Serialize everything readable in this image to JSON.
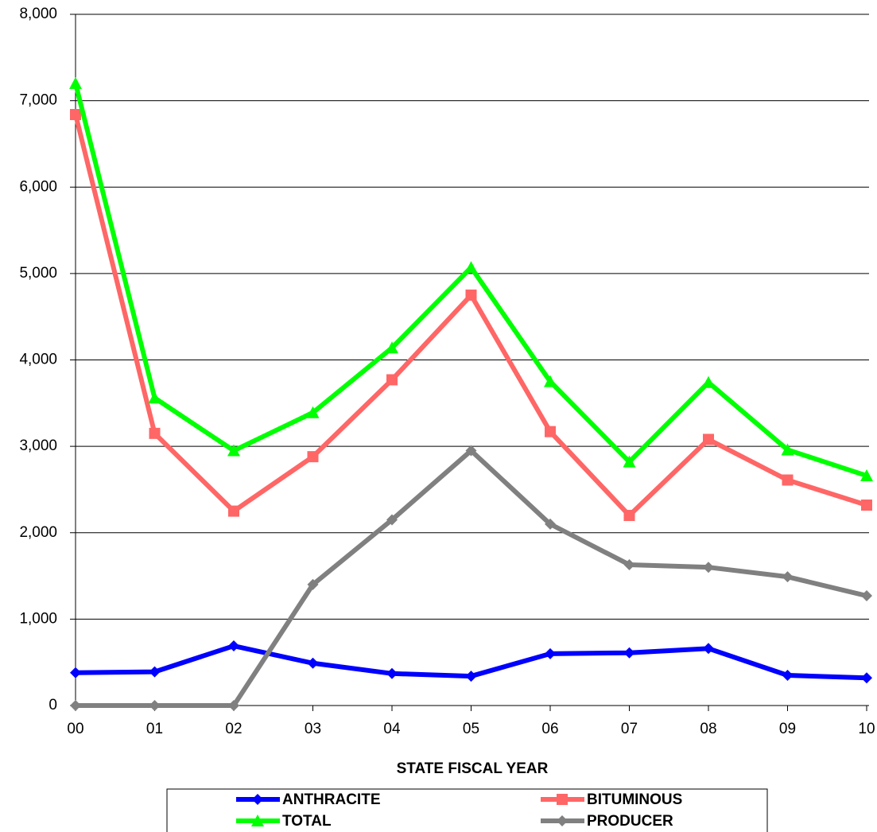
{
  "chart_data": {
    "type": "line",
    "x_label": "STATE FISCAL YEAR",
    "categories": [
      "00",
      "01",
      "02",
      "03",
      "04",
      "05",
      "06",
      "07",
      "08",
      "09",
      "10"
    ],
    "series": [
      {
        "name": "ANTHRACITE",
        "color": "#0000ff",
        "marker": "diamond",
        "values": [
          380,
          390,
          690,
          490,
          370,
          340,
          600,
          610,
          660,
          350,
          320
        ]
      },
      {
        "name": "BITUMINOUS",
        "color": "#ff6666",
        "marker": "square",
        "values": [
          6840,
          3150,
          2250,
          2880,
          3770,
          4750,
          3170,
          2200,
          3080,
          2610,
          2320
        ]
      },
      {
        "name": "TOTAL",
        "color": "#00ff00",
        "marker": "triangle",
        "values": [
          7200,
          3560,
          2950,
          3390,
          4140,
          5070,
          3750,
          2820,
          3740,
          2960,
          2660
        ]
      },
      {
        "name": "PRODUCER",
        "color": "#808080",
        "marker": "diamond",
        "values": [
          0,
          0,
          0,
          1400,
          2150,
          2950,
          2100,
          1630,
          1600,
          1490,
          1270
        ]
      }
    ],
    "ylim": [
      0,
      8000
    ],
    "yticks": [
      0,
      {
        "value": 1000,
        "label": "1,000"
      },
      {
        "value": 2000,
        "label": "2,000"
      },
      {
        "value": 3000,
        "label": "3,000"
      },
      {
        "value": 4000,
        "label": "4,000"
      },
      {
        "value": 5000,
        "label": "5,000"
      },
      {
        "value": 6000,
        "label": "6,000"
      },
      {
        "value": 7000,
        "label": "7,000"
      },
      {
        "value": 8000,
        "label": "8,000"
      }
    ],
    "grid": true,
    "legend": "bottom"
  }
}
